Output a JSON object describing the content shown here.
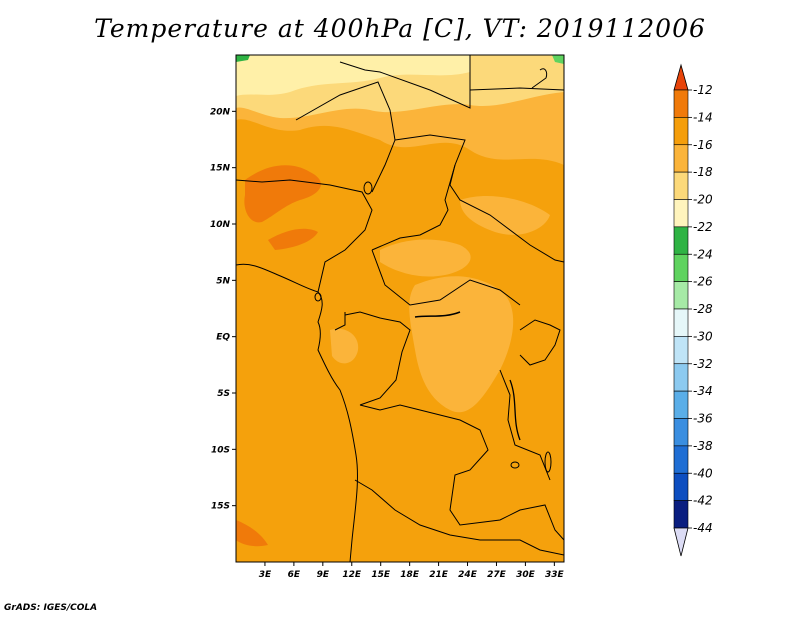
{
  "title": "Temperature at 400hPa [C], VT: 2019112006",
  "credit": "GrADS: IGES/COLA",
  "map": {
    "lon_range": [
      0,
      34
    ],
    "lat_range": [
      -20,
      25
    ],
    "lat_ticks": [
      "20N",
      "15N",
      "10N",
      "5N",
      "EQ",
      "5S",
      "10S",
      "15S"
    ],
    "lat_values": [
      20,
      15,
      10,
      5,
      0,
      -5,
      -10,
      -15
    ],
    "lon_ticks": [
      "3E",
      "6E",
      "9E",
      "12E",
      "15E",
      "18E",
      "21E",
      "24E",
      "27E",
      "30E",
      "33E"
    ],
    "lon_values": [
      3,
      6,
      9,
      12,
      15,
      18,
      21,
      24,
      27,
      30,
      33
    ]
  },
  "colorbar": {
    "labels": [
      "-12",
      "-14",
      "-16",
      "-18",
      "-20",
      "-22",
      "-24",
      "-26",
      "-28",
      "-30",
      "-32",
      "-34",
      "-36",
      "-38",
      "-40",
      "-42",
      "-44"
    ],
    "colors": [
      "#e8440a",
      "#f07a0a",
      "#f59e0b",
      "#fbb43a",
      "#fcd97a",
      "#fff4bd",
      "#2fb344",
      "#5fd35f",
      "#a6eaa6",
      "#e6f7f9",
      "#bfe4f7",
      "#8ccaf0",
      "#5aaee8",
      "#3a8ee0",
      "#1f6ed4",
      "#0d4ec0",
      "#0a1e80"
    ]
  }
}
